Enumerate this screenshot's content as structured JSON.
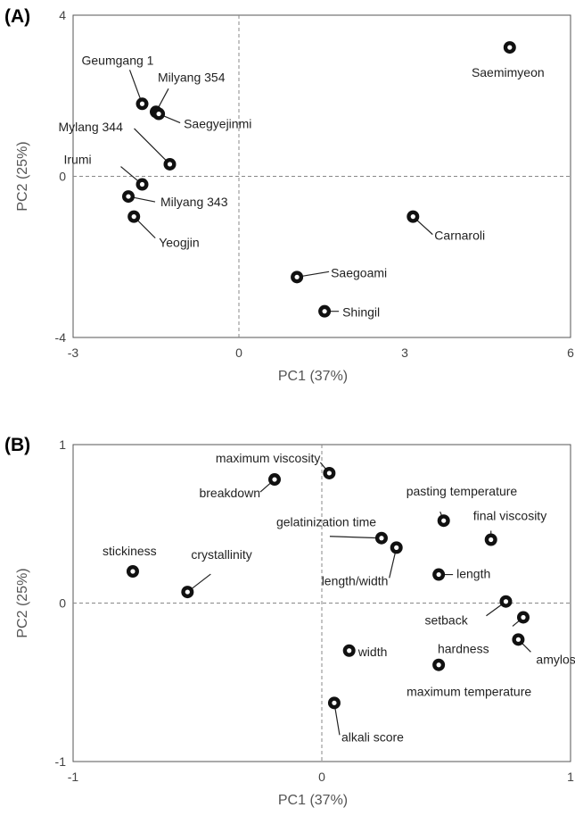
{
  "chart_data": [
    {
      "panel": "(A)",
      "type": "scatter",
      "xlabel": "PC1 (37%)",
      "ylabel": "PC2 (25%)",
      "xlim": [
        -3,
        6
      ],
      "ylim": [
        -4,
        4
      ],
      "xticks": [
        "-3",
        "0",
        "3",
        "6"
      ],
      "yticks": [
        "4",
        "0",
        "-4"
      ],
      "points": [
        {
          "label": "Saemimyeon",
          "x": 4.9,
          "y": 3.2
        },
        {
          "label": "Geumgang 1",
          "x": -1.75,
          "y": 1.8
        },
        {
          "label": "Milyang 354",
          "x": -1.5,
          "y": 1.6
        },
        {
          "label": "Saegyejinmi",
          "x": -1.45,
          "y": 1.55
        },
        {
          "label": "Mylang 344",
          "x": -1.25,
          "y": 0.3
        },
        {
          "label": "Irumi",
          "x": -1.75,
          "y": -0.2
        },
        {
          "label": "Milyang 343",
          "x": -2.0,
          "y": -0.5
        },
        {
          "label": "Yeogjin",
          "x": -1.9,
          "y": -1.0
        },
        {
          "label": "Carnaroli",
          "x": 3.15,
          "y": -1.0
        },
        {
          "label": "Saegoami",
          "x": 1.05,
          "y": -2.5
        },
        {
          "label": "Shingil",
          "x": 1.55,
          "y": -3.35
        }
      ]
    },
    {
      "panel": "(B)",
      "type": "scatter",
      "xlabel": "PC1 (37%)",
      "ylabel": "PC2 (25%)",
      "xlim": [
        -1,
        1
      ],
      "ylim": [
        -1,
        1
      ],
      "xticks": [
        "-1",
        "0",
        "1"
      ],
      "yticks": [
        "1",
        "0",
        "-1"
      ],
      "points": [
        {
          "label": "maximum viscosity",
          "x": 0.03,
          "y": 0.82
        },
        {
          "label": "breakdown",
          "x": -0.19,
          "y": 0.78
        },
        {
          "label": "pasting temperature",
          "x": 0.49,
          "y": 0.52
        },
        {
          "label": "final viscosity",
          "x": 0.68,
          "y": 0.4
        },
        {
          "label": "gelatinization time",
          "x": 0.24,
          "y": 0.41
        },
        {
          "label": "length/width",
          "x": 0.3,
          "y": 0.35
        },
        {
          "label": "stickiness",
          "x": -0.76,
          "y": 0.2
        },
        {
          "label": "crystallinity",
          "x": -0.54,
          "y": 0.07
        },
        {
          "label": "length",
          "x": 0.47,
          "y": 0.18
        },
        {
          "label": "setback",
          "x": 0.74,
          "y": 0.01
        },
        {
          "label": "hardness",
          "x": 0.81,
          "y": -0.09
        },
        {
          "label": "amylose",
          "x": 0.79,
          "y": -0.23
        },
        {
          "label": "width",
          "x": 0.11,
          "y": -0.3
        },
        {
          "label": "maximum temperature",
          "x": 0.47,
          "y": -0.39
        },
        {
          "label": "alkali score",
          "x": 0.05,
          "y": -0.63
        }
      ]
    }
  ]
}
